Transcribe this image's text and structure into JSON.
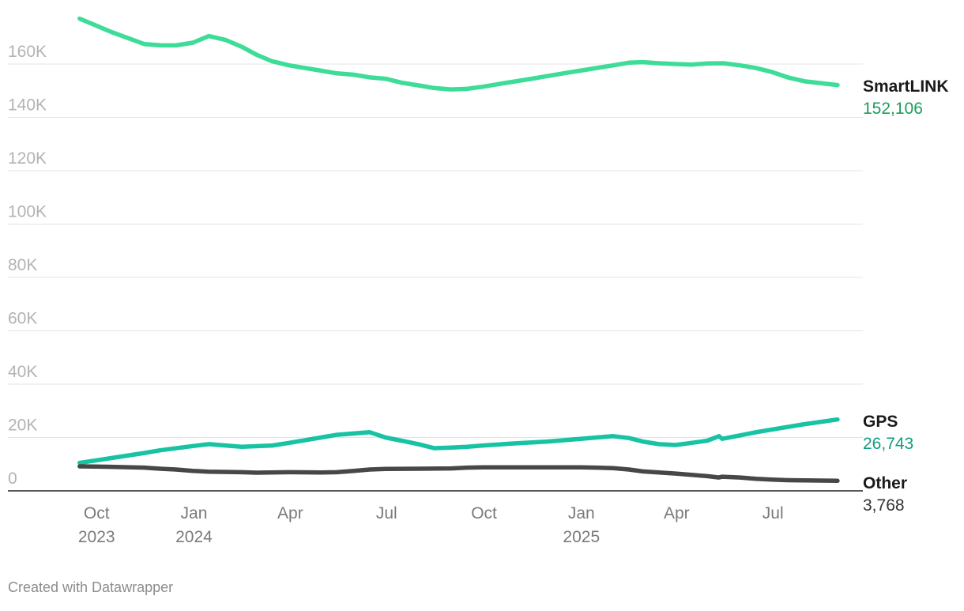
{
  "chart_data": {
    "type": "line",
    "y_ticks": [
      {
        "value": 0,
        "label": "0"
      },
      {
        "value": 20000,
        "label": "20K"
      },
      {
        "value": 40000,
        "label": "40K"
      },
      {
        "value": 60000,
        "label": "60K"
      },
      {
        "value": 80000,
        "label": "80K"
      },
      {
        "value": 100000,
        "label": "100K"
      },
      {
        "value": 120000,
        "label": "120K"
      },
      {
        "value": 140000,
        "label": "140K"
      },
      {
        "value": 160000,
        "label": "160K"
      }
    ],
    "ylim": [
      0,
      183000
    ],
    "xlim": [
      "2023-08-23",
      "2025-09-09"
    ],
    "x_ticks": [
      {
        "date": "2023-10-01",
        "label": "Oct",
        "sub": "2023"
      },
      {
        "date": "2024-01-01",
        "label": "Jan",
        "sub": "2024"
      },
      {
        "date": "2024-04-01",
        "label": "Apr",
        "sub": ""
      },
      {
        "date": "2024-07-01",
        "label": "Jul",
        "sub": ""
      },
      {
        "date": "2024-10-01",
        "label": "Oct",
        "sub": ""
      },
      {
        "date": "2025-01-01",
        "label": "Jan",
        "sub": "2025"
      },
      {
        "date": "2025-04-01",
        "label": "Apr",
        "sub": ""
      },
      {
        "date": "2025-07-01",
        "label": "Jul",
        "sub": ""
      }
    ],
    "grid": true,
    "series": [
      {
        "name": "SmartLINK",
        "color": "#3ddc97",
        "value_color": "#1a9e5a",
        "end_label": "152,106",
        "points": [
          [
            "2023-09-15",
            177000
          ],
          [
            "2023-10-15",
            172000
          ],
          [
            "2023-11-15",
            167500
          ],
          [
            "2023-12-01",
            167000
          ],
          [
            "2023-12-15",
            167000
          ],
          [
            "2023-12-31",
            168000
          ],
          [
            "2024-01-15",
            170500
          ],
          [
            "2024-01-31",
            169000
          ],
          [
            "2024-02-15",
            166500
          ],
          [
            "2024-02-29",
            163500
          ],
          [
            "2024-03-15",
            161000
          ],
          [
            "2024-03-31",
            159500
          ],
          [
            "2024-04-15",
            158500
          ],
          [
            "2024-04-30",
            157500
          ],
          [
            "2024-05-15",
            156500
          ],
          [
            "2024-05-31",
            156000
          ],
          [
            "2024-06-15",
            155000
          ],
          [
            "2024-06-30",
            154500
          ],
          [
            "2024-07-15",
            153000
          ],
          [
            "2024-07-31",
            152000
          ],
          [
            "2024-08-15",
            151000
          ],
          [
            "2024-08-31",
            150500
          ],
          [
            "2024-09-15",
            150700
          ],
          [
            "2024-09-30",
            151500
          ],
          [
            "2024-10-15",
            152500
          ],
          [
            "2024-10-31",
            153500
          ],
          [
            "2024-11-15",
            154500
          ],
          [
            "2024-11-30",
            155500
          ],
          [
            "2024-12-15",
            156500
          ],
          [
            "2024-12-31",
            157500
          ],
          [
            "2025-01-15",
            158500
          ],
          [
            "2025-01-31",
            159500
          ],
          [
            "2025-02-15",
            160500
          ],
          [
            "2025-02-28",
            160700
          ],
          [
            "2025-03-15",
            160300
          ],
          [
            "2025-03-31",
            160000
          ],
          [
            "2025-04-15",
            159800
          ],
          [
            "2025-04-30",
            160200
          ],
          [
            "2025-05-15",
            160300
          ],
          [
            "2025-05-31",
            159500
          ],
          [
            "2025-06-15",
            158500
          ],
          [
            "2025-06-30",
            157000
          ],
          [
            "2025-07-15",
            155000
          ],
          [
            "2025-07-31",
            153500
          ],
          [
            "2025-08-31",
            152106
          ]
        ]
      },
      {
        "name": "GPS",
        "color": "#17c3a3",
        "value_color": "#0f9e7e",
        "end_label": "26,743",
        "points": [
          [
            "2023-09-15",
            10500
          ],
          [
            "2023-10-15",
            12300
          ],
          [
            "2023-11-15",
            14200
          ],
          [
            "2023-11-30",
            15200
          ],
          [
            "2023-12-31",
            16800
          ],
          [
            "2024-01-15",
            17500
          ],
          [
            "2024-02-15",
            16500
          ],
          [
            "2024-03-15",
            17000
          ],
          [
            "2024-03-31",
            18000
          ],
          [
            "2024-04-15",
            19000
          ],
          [
            "2024-04-30",
            20000
          ],
          [
            "2024-05-15",
            21000
          ],
          [
            "2024-05-31",
            21500
          ],
          [
            "2024-06-15",
            22000
          ],
          [
            "2024-06-30",
            20000
          ],
          [
            "2024-07-15",
            18800
          ],
          [
            "2024-07-31",
            17500
          ],
          [
            "2024-08-15",
            16000
          ],
          [
            "2024-08-31",
            16200
          ],
          [
            "2024-09-15",
            16500
          ],
          [
            "2024-09-30",
            17000
          ],
          [
            "2024-10-31",
            17800
          ],
          [
            "2024-11-30",
            18500
          ],
          [
            "2024-12-31",
            19500
          ],
          [
            "2025-01-15",
            20000
          ],
          [
            "2025-01-31",
            20500
          ],
          [
            "2025-02-15",
            19800
          ],
          [
            "2025-02-28",
            18500
          ],
          [
            "2025-03-15",
            17500
          ],
          [
            "2025-03-31",
            17200
          ],
          [
            "2025-04-15",
            18000
          ],
          [
            "2025-04-30",
            18800
          ],
          [
            "2025-05-11",
            20500
          ],
          [
            "2025-05-14",
            19500
          ],
          [
            "2025-05-31",
            20800
          ],
          [
            "2025-06-15",
            22000
          ],
          [
            "2025-06-30",
            23000
          ],
          [
            "2025-07-31",
            25000
          ],
          [
            "2025-08-31",
            26743
          ]
        ]
      },
      {
        "name": "Other",
        "color": "#474747",
        "value_color": "#333333",
        "end_label": "3,768",
        "points": [
          [
            "2023-09-15",
            9200
          ],
          [
            "2023-10-15",
            9000
          ],
          [
            "2023-11-15",
            8700
          ],
          [
            "2023-11-30",
            8300
          ],
          [
            "2023-12-15",
            8000
          ],
          [
            "2023-12-31",
            7500
          ],
          [
            "2024-01-15",
            7200
          ],
          [
            "2024-02-15",
            7000
          ],
          [
            "2024-02-29",
            6800
          ],
          [
            "2024-03-31",
            7000
          ],
          [
            "2024-04-30",
            6900
          ],
          [
            "2024-05-15",
            7000
          ],
          [
            "2024-05-31",
            7500
          ],
          [
            "2024-06-15",
            8000
          ],
          [
            "2024-06-30",
            8200
          ],
          [
            "2024-07-31",
            8300
          ],
          [
            "2024-08-31",
            8400
          ],
          [
            "2024-09-15",
            8700
          ],
          [
            "2024-09-30",
            8800
          ],
          [
            "2024-10-31",
            8800
          ],
          [
            "2024-11-30",
            8800
          ],
          [
            "2024-12-31",
            8800
          ],
          [
            "2025-01-15",
            8700
          ],
          [
            "2025-01-31",
            8500
          ],
          [
            "2025-02-15",
            8000
          ],
          [
            "2025-02-28",
            7300
          ],
          [
            "2025-03-31",
            6500
          ],
          [
            "2025-04-15",
            6000
          ],
          [
            "2025-04-30",
            5500
          ],
          [
            "2025-05-11",
            5000
          ],
          [
            "2025-05-14",
            5300
          ],
          [
            "2025-05-31",
            5000
          ],
          [
            "2025-06-15",
            4500
          ],
          [
            "2025-06-30",
            4200
          ],
          [
            "2025-07-15",
            4000
          ],
          [
            "2025-07-31",
            3900
          ],
          [
            "2025-08-31",
            3768
          ]
        ]
      }
    ]
  },
  "footer": {
    "credit": "Created with Datawrapper"
  }
}
